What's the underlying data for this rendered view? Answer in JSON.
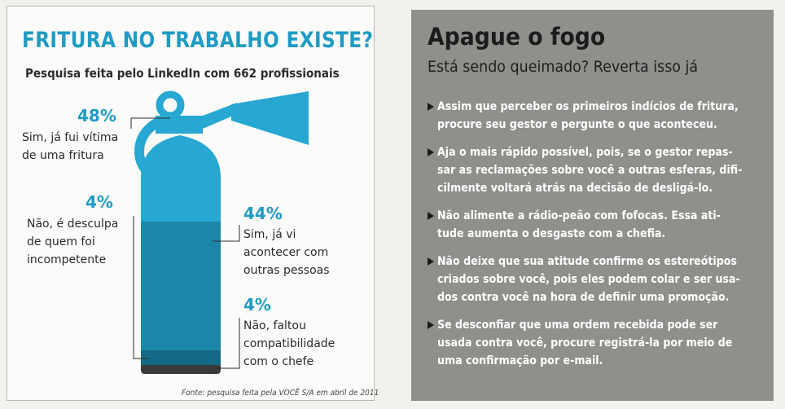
{
  "left_panel": {
    "title": "FRITURA NO TRABALHO EXISTE?",
    "subtitle": "Pesquisa feita pelo LinkedIn com 662 profissionais",
    "source": "Fonte: pesquisa feita pela VOCÊ S/A em abril de 2011",
    "colors": {
      "accent": "#1f9bc4",
      "extinguisher_light": "#27a8d2",
      "extinguisher_mid": "#1b86a8",
      "extinguisher_dark": "#136a86",
      "extinguisher_base": "#3a3a3a"
    }
  },
  "chart_data": {
    "type": "pie",
    "title": "FRITURA NO TRABALHO EXISTE?",
    "categories": [
      "Sim, já fui vítima de uma fritura",
      "Sim, já vi acontecer com outras pessoas",
      "Não, faltou compatibilidade com o chefe",
      "Não, é desculpa de quem foi incompetente"
    ],
    "values": [
      48,
      44,
      4,
      4
    ],
    "units": "%",
    "items": [
      {
        "pct": "48%",
        "lines": [
          "Sim, já fui vítima",
          "de uma fritura"
        ]
      },
      {
        "pct": "44%",
        "lines": [
          "Sim, já vi",
          "acontecer com",
          "outras pessoas"
        ]
      },
      {
        "pct": "4%",
        "lines": [
          "Não, faltou",
          "compatibilidade",
          "com o chefe"
        ]
      },
      {
        "pct": "4%",
        "lines": [
          "Não, é desculpa",
          "de quem foi",
          "incompetente"
        ]
      }
    ]
  },
  "right_panel": {
    "title": "Apague o fogo",
    "subtitle": "Está sendo queimado? Reverta isso já",
    "tips": [
      {
        "lines": [
          "Assim que perceber os primeiros indícios de fritura,",
          "procure seu gestor e pergunte o que aconteceu."
        ]
      },
      {
        "lines": [
          "Aja o mais rápido possível, pois, se o gestor repas-",
          "sar as reclamações sobre você a outras esferas, difi-",
          "cilmente voltará atrás na decisão de desligá-lo."
        ]
      },
      {
        "lines": [
          "Não alimente a rádio-peão com fofocas. Essa ati-",
          "tude aumenta o desgaste com a chefia."
        ]
      },
      {
        "lines": [
          "Não deixe que sua atitude confirme os estereótipos",
          "criados sobre você, pois eles podem colar e ser usa-",
          "dos contra você na hora de definir uma promoção."
        ]
      },
      {
        "lines": [
          "Se desconfiar que uma ordem recebida pode ser",
          "usada contra você, procure registrá-la por meio de",
          "uma confirmação por e-mail."
        ]
      }
    ],
    "colors": {
      "background": "#8f8f8c",
      "text": "#ffffff",
      "arrow": "#1a1a1a"
    }
  }
}
